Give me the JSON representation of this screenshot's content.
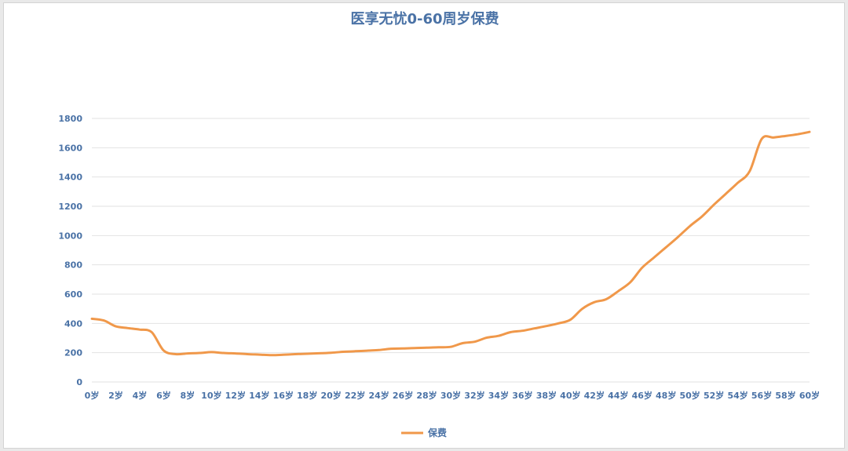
{
  "chart_data": {
    "type": "line",
    "title": "医享无忧0-60周岁保费",
    "xlabel": "",
    "ylabel": "",
    "ylim": [
      0,
      1800
    ],
    "yticks": [
      0,
      200,
      400,
      600,
      800,
      1000,
      1200,
      1400,
      1600,
      1800
    ],
    "grid": true,
    "legend_position": "bottom",
    "x_tick_labels": [
      "0岁",
      "2岁",
      "4岁",
      "6岁",
      "8岁",
      "10岁",
      "12岁",
      "14岁",
      "16岁",
      "18岁",
      "20岁",
      "22岁",
      "24岁",
      "26岁",
      "28岁",
      "30岁",
      "32岁",
      "34岁",
      "36岁",
      "38岁",
      "40岁",
      "42岁",
      "44岁",
      "46岁",
      "48岁",
      "50岁",
      "52岁",
      "54岁",
      "56岁",
      "58岁",
      "60岁"
    ],
    "x": [
      0,
      1,
      2,
      3,
      4,
      5,
      6,
      7,
      8,
      9,
      10,
      11,
      12,
      13,
      14,
      15,
      16,
      17,
      18,
      19,
      20,
      21,
      22,
      23,
      24,
      25,
      26,
      27,
      28,
      29,
      30,
      31,
      32,
      33,
      34,
      35,
      36,
      37,
      38,
      39,
      40,
      41,
      42,
      43,
      44,
      45,
      46,
      47,
      48,
      49,
      50,
      51,
      52,
      53,
      54,
      55,
      56,
      57,
      58,
      59,
      60
    ],
    "series": [
      {
        "name": "保费",
        "color": "#f0984a",
        "values": [
          432,
          420,
          380,
          368,
          358,
          340,
          215,
          190,
          195,
          198,
          204,
          198,
          195,
          190,
          187,
          183,
          186,
          190,
          193,
          196,
          200,
          206,
          210,
          214,
          218,
          227,
          229,
          232,
          234,
          237,
          240,
          265,
          275,
          302,
          315,
          340,
          350,
          366,
          382,
          400,
          425,
          500,
          545,
          565,
          620,
          680,
          780,
          850,
          920,
          990,
          1065,
          1130,
          1210,
          1285,
          1360,
          1440,
          1660,
          1670,
          1680,
          1692,
          1708
        ]
      }
    ]
  }
}
